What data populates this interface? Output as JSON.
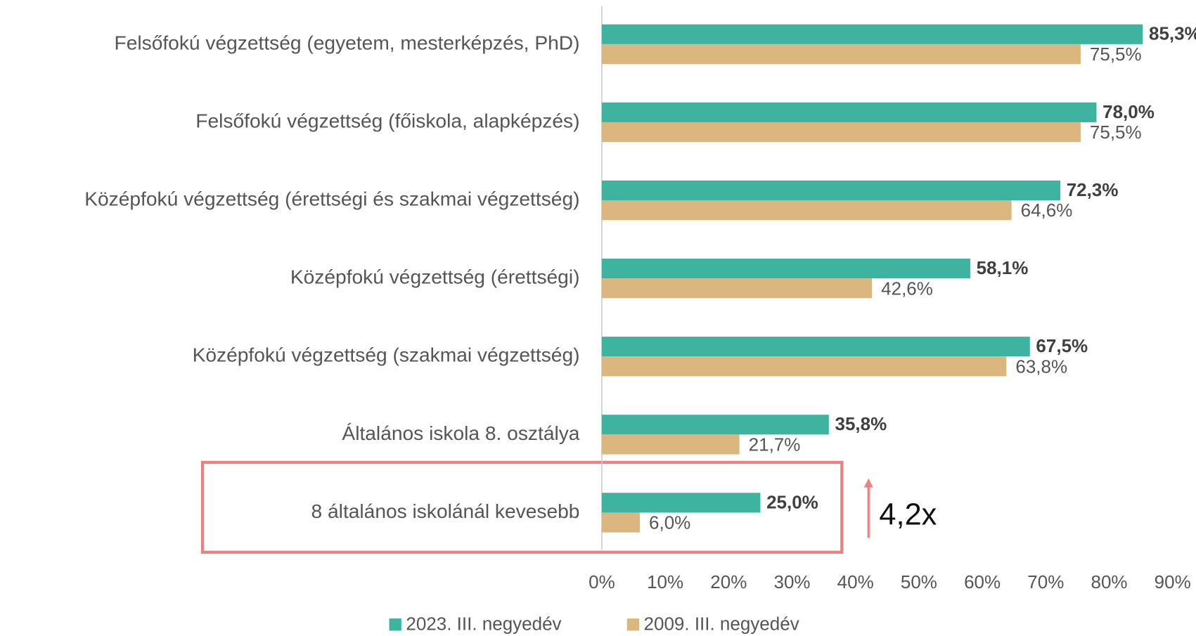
{
  "chart_data": {
    "type": "hbar",
    "categories": [
      "Felsőfokú végzettség (egyetem, mesterképzés, PhD)",
      "Felsőfokú végzettség (főiskola, alapképzés)",
      "Középfokú végzettség (érettségi és szakmai végzettség)",
      "Középfokú végzettség (érettségi)",
      "Középfokú végzettség (szakmai végzettség)",
      "Általános iskola 8. osztálya",
      "8 általános iskolánál kevesebb"
    ],
    "series": [
      {
        "name": "2023. III. negyedév",
        "color": "#3db3a0",
        "values": [
          85.3,
          78.0,
          72.3,
          58.1,
          67.5,
          35.8,
          25.0
        ],
        "value_labels": [
          "85,3%",
          "78,0%",
          "72,3%",
          "58,1%",
          "67,5%",
          "35,8%",
          "25,0%"
        ]
      },
      {
        "name": "2009. III. negyedév",
        "color": "#dbb67e",
        "values": [
          75.5,
          75.5,
          64.6,
          42.6,
          63.8,
          21.7,
          6.0
        ],
        "value_labels": [
          "75,5%",
          "75,5%",
          "64,6%",
          "42,6%",
          "63,8%",
          "21,7%",
          "6,0%"
        ]
      }
    ],
    "xlim": [
      0,
      90
    ],
    "xticks": [
      {
        "value": 0,
        "label": "0%"
      },
      {
        "value": 10,
        "label": "10%"
      },
      {
        "value": 20,
        "label": "20%"
      },
      {
        "value": 30,
        "label": "30%"
      },
      {
        "value": 40,
        "label": "40%"
      },
      {
        "value": 50,
        "label": "50%"
      },
      {
        "value": 60,
        "label": "60%"
      },
      {
        "value": 70,
        "label": "70%"
      },
      {
        "value": 80,
        "label": "80%"
      },
      {
        "value": 90,
        "label": "90%"
      }
    ],
    "annotation": "4,2x"
  }
}
